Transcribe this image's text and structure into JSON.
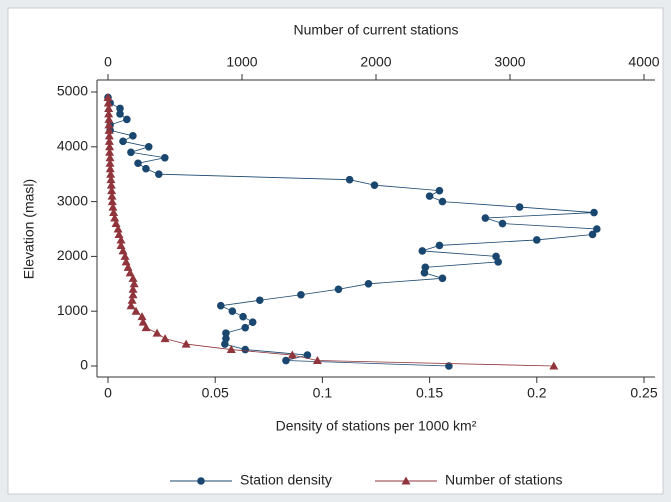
{
  "chart_data": {
    "type": "line",
    "title": "Number of current stations",
    "x_label": "Density of stations per 1000 km²",
    "y_label": "Elevation (masl)",
    "y": [
      0,
      100,
      200,
      300,
      400,
      500,
      600,
      700,
      800,
      900,
      1000,
      1100,
      1200,
      1300,
      1400,
      1500,
      1600,
      1700,
      1800,
      1900,
      2000,
      2100,
      2200,
      2300,
      2400,
      2500,
      2600,
      2700,
      2800,
      2900,
      3000,
      3100,
      3200,
      3300,
      3400,
      3500,
      3600,
      3700,
      3800,
      3900,
      4000,
      4100,
      4200,
      4300,
      4400,
      4500,
      4600,
      4700,
      4800,
      4900
    ],
    "ylim": [
      0,
      5000
    ],
    "yticks": [
      0,
      1000,
      2000,
      3000,
      4000,
      5000
    ],
    "xlim": [
      0,
      0.25
    ],
    "xticks": [
      0,
      0.05,
      0.1,
      0.15,
      0.2,
      0.25
    ],
    "x2lim": [
      0,
      4000
    ],
    "x2ticks": [
      0,
      1000,
      2000,
      3000,
      4000
    ],
    "series": [
      {
        "name": "Station density",
        "color": "#1a476f",
        "marker": "circle",
        "values": [
          0.159,
          0.083,
          0.093,
          0.064,
          0.0545,
          0.055,
          0.055,
          0.064,
          0.0675,
          0.063,
          0.058,
          0.0526,
          0.0708,
          0.09,
          0.1075,
          0.1215,
          0.156,
          0.1476,
          0.148,
          0.182,
          0.181,
          0.1466,
          0.1546,
          0.2,
          0.226,
          0.228,
          0.184,
          0.176,
          0.2267,
          0.192,
          0.156,
          0.15,
          0.1546,
          0.1243,
          0.1127,
          0.0237,
          0.0177,
          0.014,
          0.0265,
          0.0107,
          0.019,
          0.007,
          0.0116,
          0.001,
          0.001,
          0.0088,
          0.0056,
          0.0056,
          0.001,
          0
        ]
      },
      {
        "name": "Number of stations",
        "color": "#90353b",
        "marker": "triangle",
        "axis": "x2",
        "values": [
          3327,
          1563,
          1376,
          920,
          583,
          426,
          366,
          284,
          262,
          254,
          209,
          172,
          180,
          187,
          187,
          195,
          187,
          165,
          150,
          135,
          127,
          112,
          97,
          97,
          82,
          75,
          60,
          50,
          42,
          37,
          32,
          30,
          27,
          25,
          22,
          20,
          17,
          15,
          15,
          12,
          12,
          10,
          10,
          8,
          7,
          7,
          5,
          5,
          2,
          0
        ]
      }
    ]
  }
}
